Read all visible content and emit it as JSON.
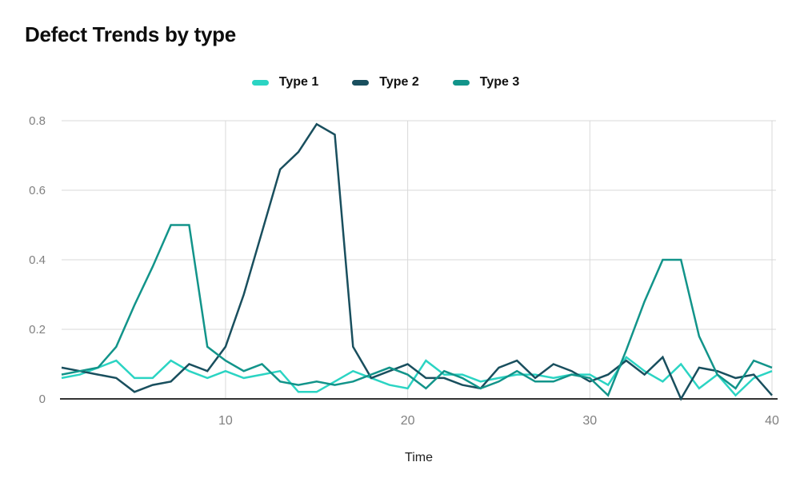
{
  "title": "Defect Trends by type",
  "chart_data": {
    "type": "line",
    "title": "Defect Trends by type",
    "xlabel": "Time",
    "ylabel": "",
    "x_min": 1,
    "x_max": 40,
    "x_step": 1,
    "ylim": [
      0,
      0.8
    ],
    "x_ticks": [
      10,
      20,
      30,
      40
    ],
    "y_ticks": [
      0,
      0.2,
      0.4,
      0.6,
      0.8
    ],
    "grid": true,
    "legend_position": "top",
    "colors": {
      "gridline": "#d9d9d9",
      "axis_line": "#333333",
      "tick_label": "#808080",
      "title_text": "#0d0d0d",
      "axis_title_text": "#1f1f1f"
    },
    "series": [
      {
        "name": "Type 1",
        "color": "#2bd4c3",
        "values": [
          0.06,
          0.07,
          0.09,
          0.11,
          0.06,
          0.06,
          0.11,
          0.08,
          0.06,
          0.08,
          0.06,
          0.07,
          0.08,
          0.02,
          0.02,
          0.05,
          0.08,
          0.06,
          0.04,
          0.03,
          0.11,
          0.07,
          0.07,
          0.05,
          0.06,
          0.07,
          0.07,
          0.06,
          0.07,
          0.07,
          0.04,
          0.12,
          0.08,
          0.05,
          0.1,
          0.03,
          0.07,
          0.01,
          0.06,
          0.08
        ]
      },
      {
        "name": "Type 2",
        "color": "#194f5e",
        "values": [
          0.09,
          0.08,
          0.07,
          0.06,
          0.02,
          0.04,
          0.05,
          0.1,
          0.08,
          0.15,
          0.3,
          0.48,
          0.66,
          0.71,
          0.79,
          0.76,
          0.15,
          0.06,
          0.08,
          0.1,
          0.06,
          0.06,
          0.04,
          0.03,
          0.09,
          0.11,
          0.06,
          0.1,
          0.08,
          0.05,
          0.07,
          0.11,
          0.07,
          0.12,
          0.0,
          0.09,
          0.08,
          0.06,
          0.07,
          0.01
        ]
      },
      {
        "name": "Type 3",
        "color": "#12948a",
        "values": [
          0.07,
          0.08,
          0.09,
          0.15,
          0.27,
          0.38,
          0.5,
          0.5,
          0.15,
          0.11,
          0.08,
          0.1,
          0.05,
          0.04,
          0.05,
          0.04,
          0.05,
          0.07,
          0.09,
          0.07,
          0.03,
          0.08,
          0.06,
          0.03,
          0.05,
          0.08,
          0.05,
          0.05,
          0.07,
          0.06,
          0.01,
          0.14,
          0.28,
          0.4,
          0.4,
          0.18,
          0.07,
          0.03,
          0.11,
          0.09
        ]
      }
    ]
  }
}
